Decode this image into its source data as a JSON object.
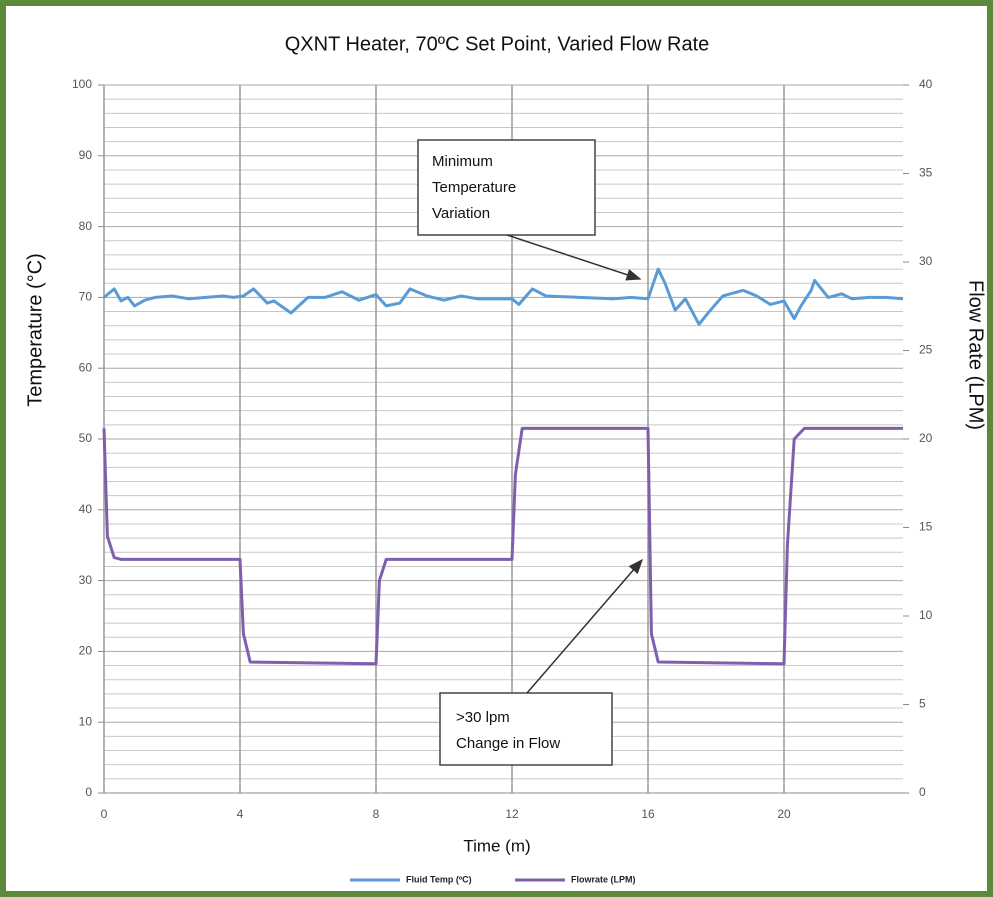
{
  "chart_data": {
    "type": "line",
    "title": "QXNT Heater, 70ºC Set Point, Varied Flow Rate",
    "xlabel": "Time (m)",
    "ylabel": "Temperature (°C)",
    "y2label": "Flow Rate (LPM)",
    "xlim": [
      0,
      23.5
    ],
    "xticks": [
      0,
      4,
      8,
      12,
      16,
      20
    ],
    "ylim": [
      0,
      100
    ],
    "yticks": [
      0,
      10,
      20,
      30,
      40,
      50,
      60,
      70,
      80,
      90,
      100
    ],
    "y2lim": [
      0,
      40
    ],
    "y2ticks": [
      0,
      5,
      10,
      15,
      20,
      25,
      30,
      35,
      40
    ],
    "grid": true,
    "minor_grid": true,
    "legend": "bottom",
    "series": [
      {
        "name": "Fluid Temp (ºC)",
        "color": "#5b9bd5",
        "x": [
          0,
          0.3,
          0.5,
          0.7,
          0.9,
          1.2,
          1.5,
          2,
          2.5,
          3,
          3.5,
          3.8,
          4.1,
          4.4,
          4.8,
          5,
          5.5,
          6,
          6.5,
          7,
          7.5,
          8,
          8.3,
          8.7,
          9,
          9.5,
          10,
          10.5,
          11,
          11.5,
          12,
          12.2,
          12.6,
          13,
          14,
          15,
          15.5,
          16,
          16.3,
          16.5,
          16.8,
          17.1,
          17.5,
          17.8,
          18.2,
          18.8,
          19.2,
          19.6,
          20,
          20.3,
          20.5,
          20.8,
          20.9,
          21.3,
          21.7,
          22,
          22.5,
          23,
          23.5
        ],
        "values": [
          70,
          71.2,
          69.5,
          70,
          68.8,
          69.6,
          70,
          70.2,
          69.8,
          70,
          70.2,
          70,
          70.2,
          71.2,
          69.2,
          69.5,
          67.8,
          70,
          70,
          70.8,
          69.6,
          70.4,
          68.8,
          69.2,
          71.2,
          70.2,
          69.6,
          70.2,
          69.8,
          69.8,
          69.8,
          69,
          71.2,
          70.2,
          70,
          69.8,
          70,
          69.8,
          74,
          72,
          68.2,
          69.8,
          66.2,
          68,
          70.2,
          71,
          70.2,
          69,
          69.5,
          67,
          68.8,
          71,
          72.4,
          70,
          70.5,
          69.8,
          70,
          70,
          69.8
        ]
      },
      {
        "name": "Flowrate (LPM)",
        "color": "#7e5fad",
        "axis": "y2",
        "x": [
          0,
          0.1,
          0.3,
          0.5,
          4,
          4.1,
          4.3,
          8,
          8.1,
          8.3,
          12,
          12.1,
          12.3,
          16,
          16.1,
          16.3,
          20,
          20.1,
          20.3,
          20.6,
          23.5
        ],
        "values": [
          20.6,
          14.5,
          13.3,
          13.2,
          13.2,
          9,
          7.4,
          7.3,
          12,
          13.2,
          13.2,
          18,
          20.6,
          20.6,
          9,
          7.4,
          7.3,
          14,
          20,
          20.6,
          20.6
        ]
      }
    ],
    "annotations": [
      {
        "lines": [
          "Minimum",
          "Temperature",
          "Variation"
        ]
      },
      {
        "lines": [
          ">30 lpm",
          "Change in Flow"
        ]
      }
    ]
  }
}
